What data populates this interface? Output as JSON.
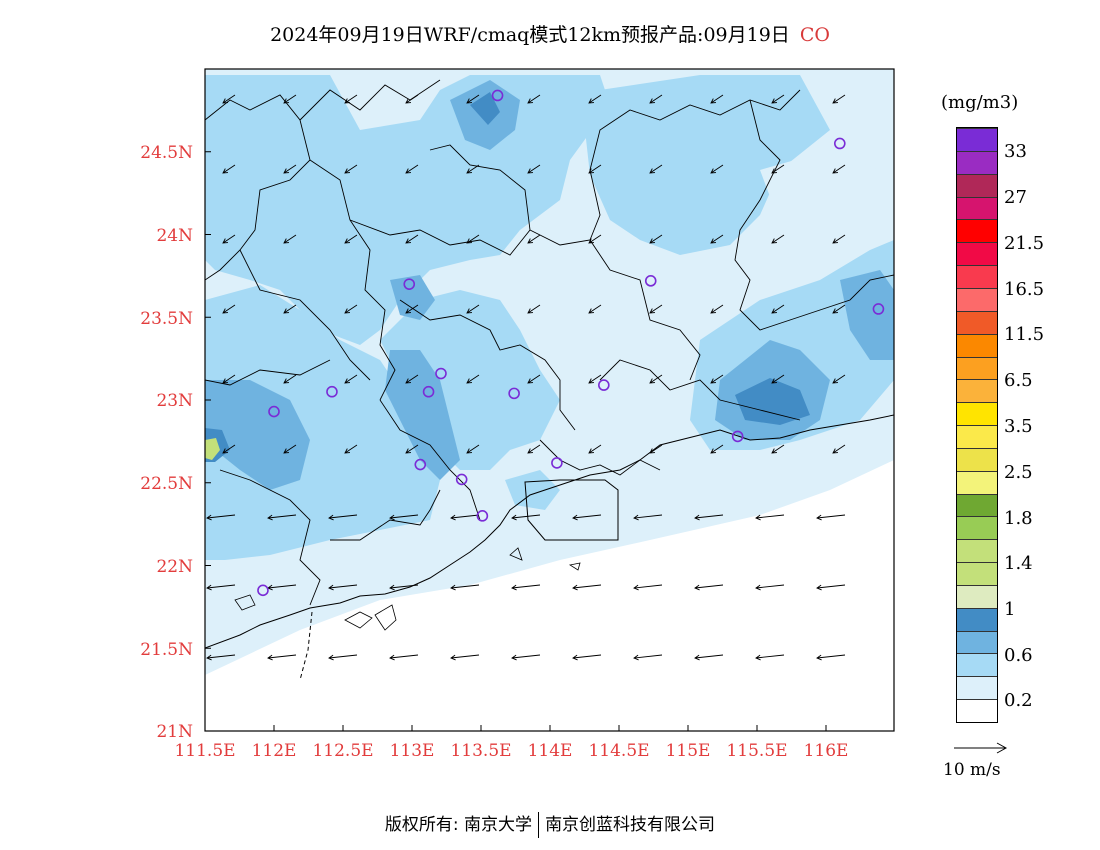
{
  "title": {
    "text": "2024年09月19日WRF/cmaq模式12km预报产品:09月19日",
    "tag": "CO"
  },
  "axes": {
    "lat_labels": [
      "24.5N",
      "24N",
      "23.5N",
      "23N",
      "22.5N",
      "22N",
      "21.5N",
      "21N"
    ],
    "lon_labels": [
      "111.5E",
      "112E",
      "112.5E",
      "113E",
      "113.5E",
      "114E",
      "114.5E",
      "115E",
      "115.5E",
      "116E"
    ]
  },
  "legend": {
    "unit": "(mg/m3)",
    "labels": [
      "0.2",
      "0.6",
      "1",
      "1.4",
      "1.8",
      "2.5",
      "3.5",
      "6.5",
      "11.5",
      "16.5",
      "21.5",
      "27",
      "33"
    ],
    "colors": [
      "#ffffff",
      "#ddf0fa",
      "#a6daf5",
      "#6fb3e0",
      "#428cc5",
      "#deebc0",
      "#c3e07a",
      "#c3e07a",
      "#98cc55",
      "#6fa832",
      "#f3f37a",
      "#ede24a",
      "#fbe94a",
      "#ffe400",
      "#fbb23a",
      "#fca020",
      "#fb8800",
      "#f05a28",
      "#fc6a6a",
      "#f93a4e",
      "#f10a46",
      "#ff0000",
      "#d6146e",
      "#b02858",
      "#9a2cc2",
      "#7a2cd6"
    ]
  },
  "vector_reference": {
    "label": "10 m/s"
  },
  "footer": {
    "left": "版权所有: 南京大学",
    "right": "南京创蓝科技有限公司"
  },
  "colors": {
    "axis_label": "#e23c3c",
    "station_marker": "#7a2cd6",
    "background_fill": "#ddf0fa"
  },
  "stations": [
    {
      "lon": 113.62,
      "lat": 24.84
    },
    {
      "lon": 116.1,
      "lat": 24.55
    },
    {
      "lon": 112.98,
      "lat": 23.7
    },
    {
      "lon": 114.73,
      "lat": 23.72
    },
    {
      "lon": 116.38,
      "lat": 23.55
    },
    {
      "lon": 113.21,
      "lat": 23.16
    },
    {
      "lon": 112.42,
      "lat": 23.05
    },
    {
      "lon": 113.12,
      "lat": 23.05
    },
    {
      "lon": 113.74,
      "lat": 23.04
    },
    {
      "lon": 114.39,
      "lat": 23.09
    },
    {
      "lon": 112.0,
      "lat": 22.93
    },
    {
      "lon": 115.36,
      "lat": 22.78
    },
    {
      "lon": 113.06,
      "lat": 22.61
    },
    {
      "lon": 114.05,
      "lat": 22.62
    },
    {
      "lon": 113.36,
      "lat": 22.52
    },
    {
      "lon": 113.51,
      "lat": 22.3
    },
    {
      "lon": 111.92,
      "lat": 21.85
    }
  ]
}
